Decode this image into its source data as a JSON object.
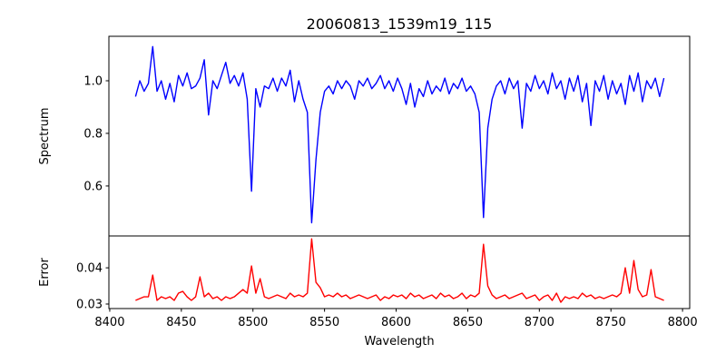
{
  "chart_data": [
    {
      "type": "line",
      "title": "20060813_1539m19_115",
      "xlabel": "",
      "ylabel": "Spectrum",
      "xlim": [
        8399.4,
        8805
      ],
      "ylim": [
        0.41,
        1.169
      ],
      "yticks": [
        0.6,
        0.8,
        1.0
      ],
      "ytick_labels": [
        "0.6",
        "0.8",
        "1.0"
      ],
      "grid": false,
      "color": "#0000ff",
      "x_start": 8418,
      "x_step": 3,
      "values": [
        0.94,
        1.0,
        0.96,
        0.99,
        1.13,
        0.96,
        1.0,
        0.93,
        0.99,
        0.92,
        1.02,
        0.98,
        1.03,
        0.97,
        0.98,
        1.01,
        1.08,
        0.87,
        1.0,
        0.97,
        1.02,
        1.07,
        0.99,
        1.02,
        0.98,
        1.03,
        0.93,
        0.58,
        0.97,
        0.9,
        0.98,
        0.97,
        1.01,
        0.96,
        1.01,
        0.98,
        1.04,
        0.92,
        1.0,
        0.93,
        0.88,
        0.46,
        0.7,
        0.88,
        0.96,
        0.98,
        0.95,
        1.0,
        0.97,
        1.0,
        0.98,
        0.93,
        1.0,
        0.98,
        1.01,
        0.97,
        0.99,
        1.02,
        0.97,
        1.0,
        0.96,
        1.01,
        0.97,
        0.91,
        0.99,
        0.9,
        0.97,
        0.94,
        1.0,
        0.95,
        0.98,
        0.96,
        1.01,
        0.95,
        0.99,
        0.97,
        1.01,
        0.96,
        0.98,
        0.95,
        0.88,
        0.48,
        0.82,
        0.93,
        0.98,
        1.0,
        0.95,
        1.01,
        0.97,
        1.0,
        0.82,
        0.99,
        0.96,
        1.02,
        0.97,
        1.0,
        0.95,
        1.03,
        0.97,
        1.0,
        0.93,
        1.01,
        0.96,
        1.02,
        0.92,
        0.99,
        0.83,
        1.0,
        0.96,
        1.02,
        0.93,
        1.0,
        0.95,
        0.99,
        0.91,
        1.02,
        0.96,
        1.03,
        0.92,
        1.0,
        0.97,
        1.01,
        0.94,
        1.01
      ]
    },
    {
      "type": "line",
      "title": "",
      "xlabel": "Wavelength",
      "ylabel": "Error",
      "xlim": [
        8399.4,
        8805
      ],
      "ylim": [
        0.02875,
        0.0488
      ],
      "yticks": [
        0.03,
        0.04
      ],
      "ytick_labels": [
        "0.03",
        "0.04"
      ],
      "xticks": [
        8400,
        8450,
        8500,
        8550,
        8600,
        8650,
        8700,
        8750,
        8800
      ],
      "xtick_labels": [
        "8400",
        "8450",
        "8500",
        "8550",
        "8600",
        "8650",
        "8700",
        "8750",
        "8800"
      ],
      "grid": false,
      "color": "#ff0000",
      "x_start": 8418,
      "x_step": 3,
      "values": [
        0.031,
        0.0315,
        0.032,
        0.032,
        0.038,
        0.031,
        0.032,
        0.0315,
        0.032,
        0.031,
        0.033,
        0.0335,
        0.032,
        0.031,
        0.032,
        0.0375,
        0.032,
        0.033,
        0.0315,
        0.032,
        0.031,
        0.032,
        0.0315,
        0.032,
        0.033,
        0.034,
        0.033,
        0.0405,
        0.033,
        0.037,
        0.032,
        0.0315,
        0.032,
        0.0325,
        0.032,
        0.0315,
        0.033,
        0.032,
        0.0325,
        0.032,
        0.033,
        0.048,
        0.036,
        0.0345,
        0.032,
        0.0325,
        0.032,
        0.033,
        0.032,
        0.0325,
        0.0315,
        0.032,
        0.0325,
        0.032,
        0.0315,
        0.032,
        0.0325,
        0.031,
        0.032,
        0.0315,
        0.0325,
        0.032,
        0.0325,
        0.0315,
        0.033,
        0.032,
        0.0325,
        0.0315,
        0.032,
        0.0325,
        0.0315,
        0.033,
        0.032,
        0.0325,
        0.0315,
        0.032,
        0.033,
        0.0315,
        0.0325,
        0.032,
        0.033,
        0.0465,
        0.035,
        0.0325,
        0.0315,
        0.032,
        0.0325,
        0.0315,
        0.032,
        0.0325,
        0.033,
        0.0315,
        0.032,
        0.0325,
        0.031,
        0.032,
        0.0325,
        0.031,
        0.033,
        0.0305,
        0.032,
        0.0315,
        0.032,
        0.0315,
        0.033,
        0.032,
        0.0325,
        0.0315,
        0.032,
        0.0315,
        0.032,
        0.0325,
        0.032,
        0.033,
        0.04,
        0.033,
        0.042,
        0.034,
        0.032,
        0.0325,
        0.0395,
        0.032,
        0.0315,
        0.031
      ]
    }
  ]
}
